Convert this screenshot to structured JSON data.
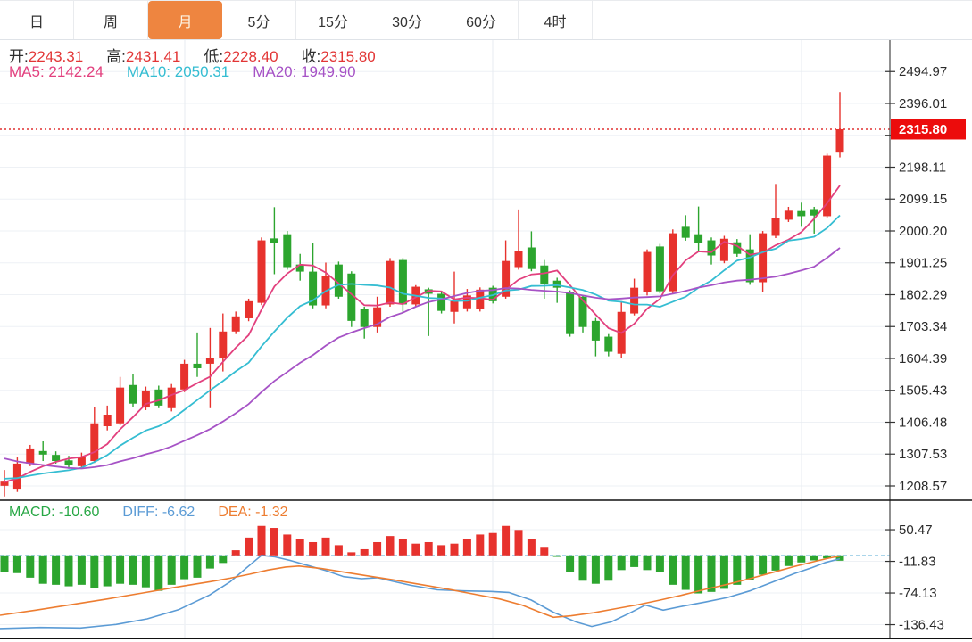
{
  "tabs": {
    "items": [
      {
        "name": "tab-day",
        "label": "日",
        "active": false
      },
      {
        "name": "tab-week",
        "label": "周",
        "active": false
      },
      {
        "name": "tab-month",
        "label": "月",
        "active": true
      },
      {
        "name": "tab-5min",
        "label": "5分",
        "active": false
      },
      {
        "name": "tab-15min",
        "label": "15分",
        "active": false
      },
      {
        "name": "tab-30min",
        "label": "30分",
        "active": false
      },
      {
        "name": "tab-60min",
        "label": "60分",
        "active": false
      },
      {
        "name": "tab-4hour",
        "label": "4时",
        "active": false
      }
    ]
  },
  "quote": {
    "open_label": "开:",
    "open": "2243.31",
    "high_label": "高:",
    "high": "2431.41",
    "low_label": "低:",
    "low": "2228.40",
    "close_label": "收:",
    "close": "2315.80",
    "ma5_label": "MA5:",
    "ma5": "2142.24",
    "ma10_label": "MA10:",
    "ma10": "2050.31",
    "ma20_label": "MA20:",
    "ma20": "1949.90"
  },
  "macd_header": {
    "macd_label": "MACD:",
    "macd": "-10.60",
    "diff_label": "DIFF:",
    "diff": "-6.62",
    "dea_label": "DEA:",
    "dea": "-1.32"
  },
  "last_price_tag": "2315.80",
  "colors": {
    "up": "#e7322d",
    "down": "#2ca52e",
    "ma5": "#e2407e",
    "ma10": "#35bdd2",
    "ma20": "#a653c6",
    "diff": "#5b9bd5",
    "dea": "#ed7d31",
    "tag_bg": "#ec0c0c",
    "dotted_line": "#e03030",
    "grid": "#eef1f5",
    "vgrid": "#e7ebf0",
    "axis": "#555555",
    "tick_text": "#2b2b2b",
    "active_tab": "#ee8540",
    "zero_dash": "#9ecfe8",
    "separator": "#111111"
  },
  "chart_data": {
    "type": "candlestick+macd",
    "title": "",
    "legend": [
      "MA5",
      "MA10",
      "MA20",
      "MACD",
      "DIFF",
      "DEA"
    ],
    "price_axis_ticks": [
      2494.97,
      2396.01,
      2297.06,
      2198.11,
      2099.15,
      2000.2,
      1901.25,
      1802.29,
      1703.34,
      1604.39,
      1505.43,
      1406.48,
      1307.53,
      1208.57
    ],
    "macd_axis_ticks": [
      50.47,
      -11.83,
      -74.13,
      -136.43
    ],
    "last_price": 2315.8,
    "candles": [
      [
        1209,
        1258,
        1176,
        1222
      ],
      [
        1200,
        1297,
        1190,
        1278
      ],
      [
        1278,
        1336,
        1270,
        1325
      ],
      [
        1317,
        1347,
        1286,
        1306
      ],
      [
        1305,
        1316,
        1278,
        1286
      ],
      [
        1288,
        1302,
        1262,
        1274
      ],
      [
        1270,
        1312,
        1264,
        1300
      ],
      [
        1286,
        1453,
        1280,
        1403
      ],
      [
        1394,
        1458,
        1381,
        1430
      ],
      [
        1403,
        1547,
        1397,
        1514
      ],
      [
        1522,
        1556,
        1455,
        1464
      ],
      [
        1452,
        1517,
        1444,
        1505
      ],
      [
        1508,
        1520,
        1450,
        1458
      ],
      [
        1450,
        1525,
        1440,
        1514
      ],
      [
        1508,
        1600,
        1500,
        1588
      ],
      [
        1588,
        1685,
        1547,
        1574
      ],
      [
        1588,
        1699,
        1450,
        1605
      ],
      [
        1605,
        1744,
        1564,
        1688
      ],
      [
        1688,
        1750,
        1680,
        1735
      ],
      [
        1729,
        1790,
        1720,
        1782
      ],
      [
        1777,
        1980,
        1770,
        1971
      ],
      [
        1977,
        2074,
        1866,
        1963
      ],
      [
        1990,
        2000,
        1880,
        1888
      ],
      [
        1896,
        1929,
        1846,
        1874
      ],
      [
        1874,
        1963,
        1760,
        1769
      ],
      [
        1769,
        1902,
        1760,
        1860
      ],
      [
        1896,
        1905,
        1790,
        1796
      ],
      [
        1868,
        1875,
        1702,
        1721
      ],
      [
        1758,
        1765,
        1666,
        1702
      ],
      [
        1702,
        1796,
        1685,
        1763
      ],
      [
        1772,
        1916,
        1765,
        1907
      ],
      [
        1910,
        1916,
        1749,
        1772
      ],
      [
        1772,
        1832,
        1765,
        1827
      ],
      [
        1819,
        1824,
        1674,
        1805
      ],
      [
        1805,
        1810,
        1744,
        1752
      ],
      [
        1749,
        1874,
        1713,
        1782
      ],
      [
        1760,
        1820,
        1750,
        1800
      ],
      [
        1757,
        1825,
        1750,
        1818
      ],
      [
        1824,
        1830,
        1775,
        1782
      ],
      [
        1796,
        1971,
        1790,
        1907
      ],
      [
        1888,
        2067,
        1880,
        1938
      ],
      [
        1949,
        1999,
        1875,
        1882
      ],
      [
        1893,
        1910,
        1790,
        1835
      ],
      [
        1846,
        1855,
        1777,
        1824
      ],
      [
        1810,
        1816,
        1672,
        1680
      ],
      [
        1796,
        1800,
        1685,
        1702
      ],
      [
        1721,
        1730,
        1611,
        1660
      ],
      [
        1672,
        1680,
        1611,
        1625
      ],
      [
        1619,
        1782,
        1605,
        1749
      ],
      [
        1744,
        1852,
        1738,
        1824
      ],
      [
        1810,
        1943,
        1800,
        1935
      ],
      [
        1952,
        1960,
        1806,
        1813
      ],
      [
        1813,
        2005,
        1805,
        1993
      ],
      [
        2013,
        2049,
        1970,
        1979
      ],
      [
        1990,
        2076,
        1937,
        1962
      ],
      [
        1971,
        1980,
        1896,
        1924
      ],
      [
        1907,
        1985,
        1900,
        1976
      ],
      [
        1965,
        1975,
        1920,
        1929
      ],
      [
        1943,
        1990,
        1833,
        1841
      ],
      [
        1841,
        2000,
        1810,
        1993
      ],
      [
        1985,
        2146,
        1978,
        2040
      ],
      [
        2035,
        2075,
        2028,
        2063
      ],
      [
        2062,
        2088,
        2013,
        2046
      ],
      [
        2068,
        2075,
        1992,
        2048
      ],
      [
        2046,
        2240,
        2040,
        2234
      ],
      [
        2243.31,
        2431.41,
        2228.4,
        2315.8
      ]
    ],
    "ma_seed_closes": [
      1500,
      1468,
      1438,
      1410,
      1384,
      1360,
      1338,
      1318,
      1300,
      1284,
      1270,
      1258,
      1248,
      1240,
      1233,
      1228,
      1224,
      1221,
      1219,
      1218
    ],
    "macd_hist": [
      -32,
      -35,
      -44,
      -56,
      -58,
      -61,
      -58,
      -64,
      -61,
      -56,
      -58,
      -63,
      -70,
      -58,
      -47,
      -44,
      -26,
      -15,
      10,
      35,
      58,
      54,
      41,
      32,
      26,
      35,
      20,
      6,
      12,
      26,
      38,
      32,
      23,
      26,
      20,
      23,
      32,
      41,
      44,
      58,
      50,
      32,
      15,
      -3,
      -32,
      -50,
      -56,
      -50,
      -29,
      -23,
      -29,
      -32,
      -58,
      -68,
      -75,
      -72,
      -66,
      -58,
      -48,
      -38,
      -30,
      -21,
      -14,
      -10,
      -6,
      -10.6
    ],
    "diff_line": [
      [
        0,
        -144
      ],
      [
        45,
        -142
      ],
      [
        90,
        -143
      ],
      [
        130,
        -136
      ],
      [
        165,
        -125
      ],
      [
        200,
        -107
      ],
      [
        235,
        -78
      ],
      [
        258,
        -52
      ],
      [
        278,
        -22
      ],
      [
        293,
        0
      ],
      [
        308,
        -3
      ],
      [
        325,
        -10
      ],
      [
        345,
        -20
      ],
      [
        365,
        -30
      ],
      [
        385,
        -42
      ],
      [
        405,
        -46
      ],
      [
        423,
        -44
      ],
      [
        440,
        -51
      ],
      [
        460,
        -59
      ],
      [
        490,
        -68
      ],
      [
        520,
        -70
      ],
      [
        550,
        -71
      ],
      [
        570,
        -73
      ],
      [
        595,
        -88
      ],
      [
        620,
        -112
      ],
      [
        645,
        -131
      ],
      [
        663,
        -140
      ],
      [
        685,
        -131
      ],
      [
        705,
        -114
      ],
      [
        723,
        -98
      ],
      [
        743,
        -108
      ],
      [
        765,
        -100
      ],
      [
        790,
        -92
      ],
      [
        815,
        -83
      ],
      [
        840,
        -70
      ],
      [
        865,
        -53
      ],
      [
        890,
        -36
      ],
      [
        910,
        -24
      ],
      [
        925,
        -14
      ],
      [
        941,
        -6.62
      ]
    ],
    "dea_line": [
      [
        0,
        -118
      ],
      [
        40,
        -108
      ],
      [
        80,
        -97
      ],
      [
        120,
        -86
      ],
      [
        160,
        -74
      ],
      [
        200,
        -62
      ],
      [
        235,
        -52
      ],
      [
        258,
        -45
      ],
      [
        280,
        -37
      ],
      [
        300,
        -29
      ],
      [
        320,
        -23
      ],
      [
        335,
        -21
      ],
      [
        360,
        -26
      ],
      [
        385,
        -33
      ],
      [
        410,
        -40
      ],
      [
        440,
        -48
      ],
      [
        470,
        -57
      ],
      [
        500,
        -66
      ],
      [
        530,
        -76
      ],
      [
        560,
        -86
      ],
      [
        585,
        -98
      ],
      [
        605,
        -112
      ],
      [
        620,
        -122
      ],
      [
        640,
        -119
      ],
      [
        665,
        -113
      ],
      [
        690,
        -105
      ],
      [
        715,
        -97
      ],
      [
        740,
        -88
      ],
      [
        765,
        -78
      ],
      [
        790,
        -67
      ],
      [
        815,
        -57
      ],
      [
        840,
        -46
      ],
      [
        865,
        -34
      ],
      [
        890,
        -22
      ],
      [
        915,
        -11
      ],
      [
        930,
        -5
      ],
      [
        941,
        -1.32
      ]
    ]
  }
}
